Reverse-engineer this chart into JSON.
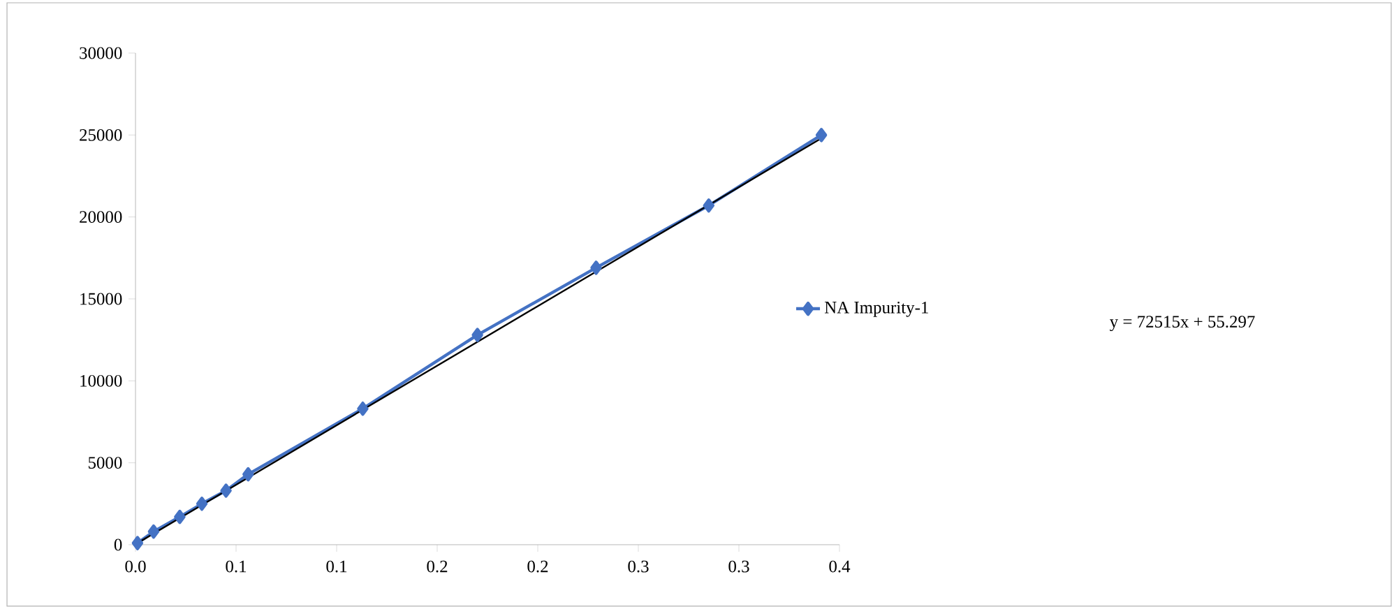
{
  "chart_data": {
    "type": "line",
    "marker": "diamond",
    "legend": "right",
    "grid": false,
    "xlim": [
      0,
      0.35
    ],
    "ylim": [
      0,
      30000
    ],
    "xticks": [
      {
        "value": 0,
        "label": "0.0"
      },
      {
        "value": 0.05,
        "label": "0.1"
      },
      {
        "value": 0.1,
        "label": "0.1"
      },
      {
        "value": 0.15,
        "label": "0.2"
      },
      {
        "value": 0.2,
        "label": "0.2"
      },
      {
        "value": 0.25,
        "label": "0.3"
      },
      {
        "value": 0.3,
        "label": "0.3"
      },
      {
        "value": 0.35,
        "label": "0.4"
      }
    ],
    "yticks": [
      0,
      5000,
      10000,
      15000,
      20000,
      25000,
      30000
    ],
    "series": [
      {
        "name": "NA Impurity-1",
        "color": "#4472c4",
        "x": [
          0.001,
          0.009,
          0.022,
          0.033,
          0.045,
          0.056,
          0.113,
          0.17,
          0.229,
          0.285,
          0.341
        ],
        "values": [
          100,
          800,
          1700,
          2500,
          3300,
          4300,
          8300,
          12800,
          16900,
          20700,
          25000
        ]
      },
      {
        "type": "line",
        "marker": "none",
        "color": "#000000",
        "x": [
          0.001,
          0.341
        ],
        "values": [
          100,
          24800
        ]
      }
    ],
    "annotations": [
      "y = 72515x + 55.297"
    ]
  }
}
